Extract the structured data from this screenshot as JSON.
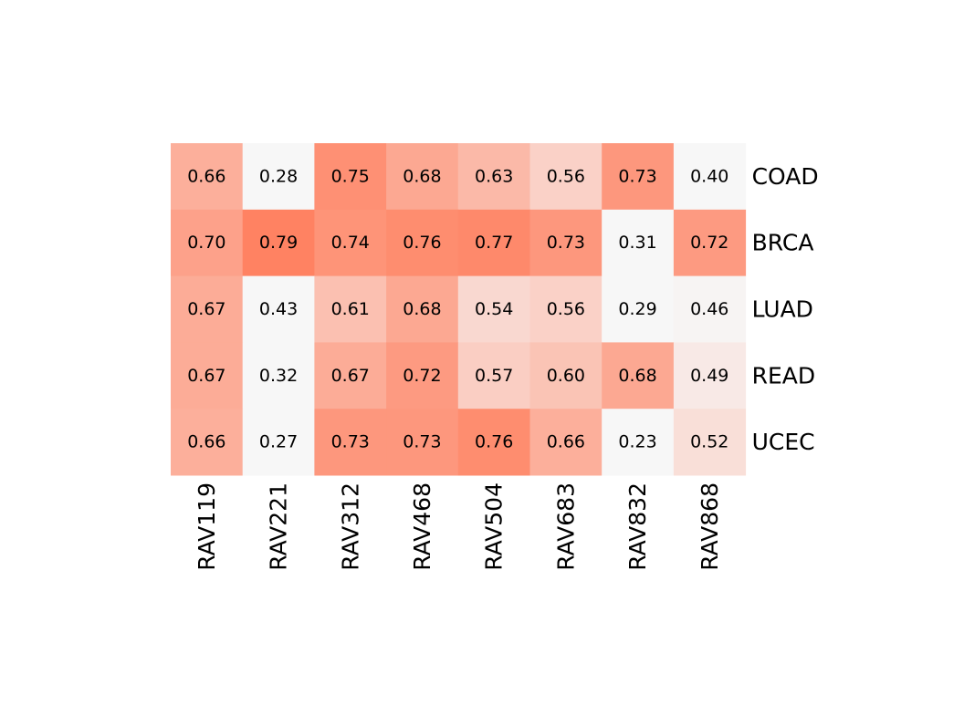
{
  "chart_data": {
    "type": "heatmap",
    "rows": [
      "COAD",
      "BRCA",
      "LUAD",
      "READ",
      "UCEC"
    ],
    "columns": [
      "RAV119",
      "RAV221",
      "RAV312",
      "RAV468",
      "RAV504",
      "RAV683",
      "RAV832",
      "RAV868"
    ],
    "values": [
      [
        0.66,
        0.28,
        0.75,
        0.68,
        0.63,
        0.56,
        0.73,
        0.4
      ],
      [
        0.7,
        0.79,
        0.74,
        0.76,
        0.77,
        0.73,
        0.31,
        0.72
      ],
      [
        0.67,
        0.43,
        0.61,
        0.68,
        0.54,
        0.56,
        0.29,
        0.46
      ],
      [
        0.67,
        0.32,
        0.67,
        0.72,
        0.57,
        0.6,
        0.68,
        0.49
      ],
      [
        0.66,
        0.27,
        0.73,
        0.73,
        0.76,
        0.66,
        0.23,
        0.52
      ]
    ],
    "value_format": "2 decimals",
    "color_scale": {
      "low": "#f7f7f7",
      "high": "#ff7f5e",
      "domain": [
        0.45,
        0.8
      ]
    },
    "row_labels_position": "right",
    "column_labels_position": "bottom, rotated vertical",
    "title": "",
    "xlabel": "",
    "ylabel": ""
  }
}
